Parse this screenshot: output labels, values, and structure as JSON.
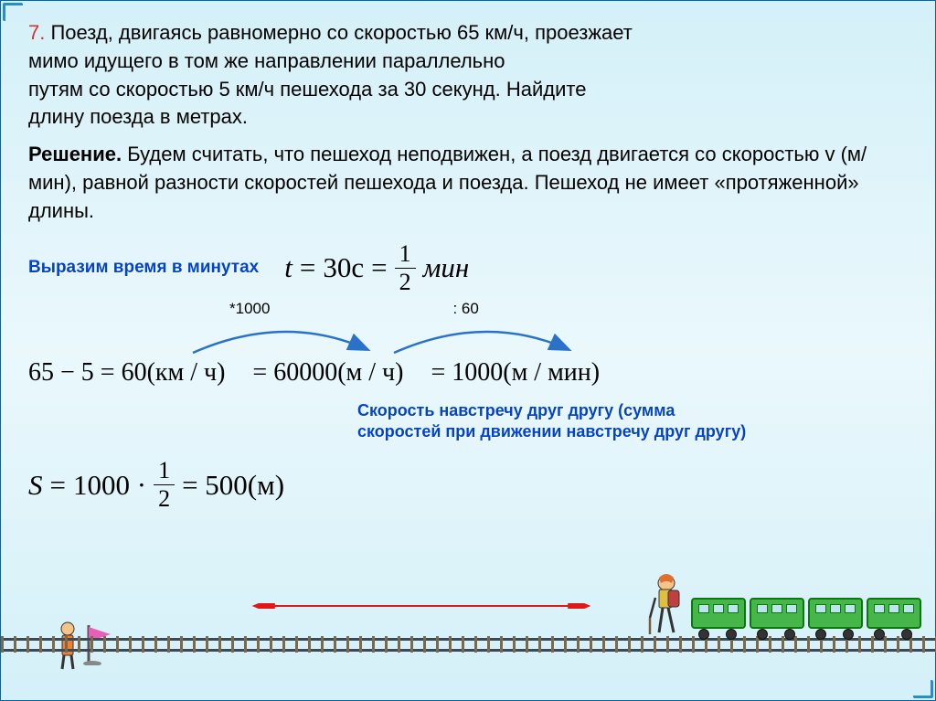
{
  "problem": {
    "number": "7.",
    "line1": " Поезд, двигаясь равномерно со скоростью 65 км/ч, проезжает",
    "line2": "мимо идущего в том же направлении параллельно",
    "line3": "путям со скоростью 5 км/ч пешехода за 30 секунд. Найдите",
    "line4": "длину поезда в метрах."
  },
  "solution": {
    "label": "Решение.",
    "text": " Будем считать, что пешеход неподвижен, а поезд двигается со скоростью v (м/мин), равной разности скоростей пешехода и поезда. Пешеход не имеет «протяженной» длины."
  },
  "time": {
    "label": "Выразим время в минутах",
    "t": "t",
    "eq": "=",
    "val": "30c",
    "frac_num": "1",
    "frac_den": "2",
    "unit": "мин"
  },
  "conv": {
    "mul": "*1000",
    "div": ": 60",
    "step1": "65 − 5 = 60(км / ч)",
    "step2": "= 60000(м / ч)",
    "step3": "= 1000(м / мин)"
  },
  "note": {
    "line1": "Скорость навстречу друг другу (сумма",
    "line2": "скоростей при движении навстречу друг другу)"
  },
  "answer": {
    "S": "S",
    "eq": "=",
    "base": "1000 ·",
    "frac_num": "1",
    "frac_den": "2",
    "result": "= 500(м)"
  },
  "colors": {
    "accent_red": "#d63333",
    "accent_blue": "#0044cc",
    "train_green": "#47b64a",
    "flag_pink": "#e85fb8",
    "arrow_red": "#e01818",
    "arc_blue": "#2a72c9"
  }
}
